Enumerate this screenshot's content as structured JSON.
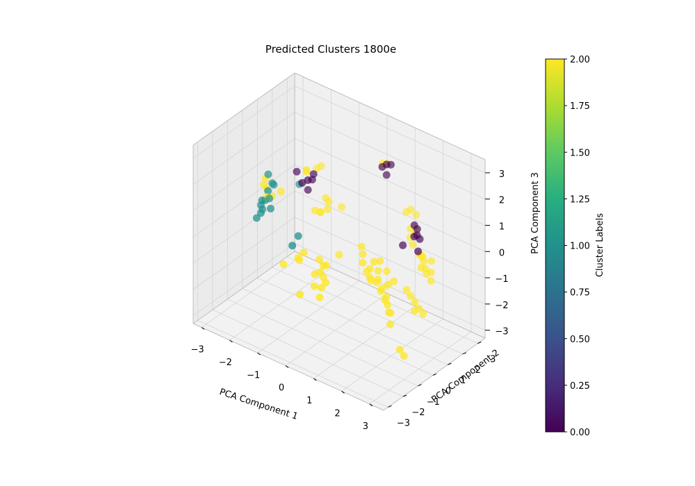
{
  "chart_data": {
    "type": "scatter",
    "title": "Predicted Clusters 1800e",
    "xlabel": "PCA Component 1",
    "ylabel": "PCA Component 2",
    "zlabel": "PCA Component 3",
    "xlim": [
      -3.3,
      3.5
    ],
    "ylim": [
      -3.3,
      3.5
    ],
    "zlim": [
      -3.3,
      3.5
    ],
    "xticks": [
      "−3",
      "−2",
      "−1",
      "0",
      "1",
      "2",
      "3"
    ],
    "yticks": [
      "−3",
      "−2",
      "−1",
      "0",
      "1",
      "2",
      "3"
    ],
    "zticks": [
      "−3",
      "−2",
      "−1",
      "0",
      "1",
      "2",
      "3"
    ],
    "colorbar": {
      "label": "Cluster Labels",
      "range": [
        0,
        2
      ],
      "colormap": "viridis",
      "ticks": [
        "0.00",
        "0.25",
        "0.50",
        "0.75",
        "1.00",
        "1.25",
        "1.50",
        "1.75",
        "2.00"
      ]
    },
    "series": [
      {
        "label": 0,
        "color": "#440154",
        "points": [
          [
            1.1,
            1.4,
            3.0
          ],
          [
            1.2,
            1.5,
            3.0
          ],
          [
            1.0,
            1.3,
            2.9
          ],
          [
            1.1,
            1.4,
            2.6
          ],
          [
            -1.4,
            1.2,
            1.5
          ],
          [
            -1.5,
            1.0,
            1.3
          ],
          [
            -1.7,
            1.0,
            1.1
          ],
          [
            -2.0,
            1.2,
            1.3
          ],
          [
            -1.6,
            1.2,
            0.8
          ],
          [
            -1.5,
            1.3,
            1.2
          ],
          [
            2.2,
            1.2,
            1.3
          ],
          [
            2.4,
            1.0,
            1.1
          ],
          [
            2.5,
            1.0,
            1.0
          ],
          [
            2.3,
            1.0,
            1.0
          ],
          [
            2.0,
            0.8,
            0.6
          ],
          [
            2.6,
            0.7,
            0.7
          ],
          [
            2.3,
            1.2,
            1.2
          ]
        ]
      },
      {
        "label": 1,
        "color": "#21918c",
        "points": [
          [
            -2.7,
            0.6,
            1.1
          ],
          [
            -2.5,
            0.5,
            0.9
          ],
          [
            -2.5,
            0.6,
            0.8
          ],
          [
            -2.6,
            0.4,
            0.6
          ],
          [
            -2.5,
            0.3,
            0.4
          ],
          [
            -2.7,
            0.4,
            0.2
          ],
          [
            -2.8,
            0.3,
            0.0
          ],
          [
            -2.8,
            0.4,
            -0.2
          ],
          [
            -2.8,
            0.3,
            -0.3
          ],
          [
            -2.9,
            0.2,
            -0.5
          ],
          [
            -2.6,
            0.0,
            0.4
          ],
          [
            -1.8,
            1.0,
            1.0
          ],
          [
            -2.4,
            0.2,
            0.1
          ],
          [
            -1.2,
            -0.2,
            -0.2
          ],
          [
            -1.2,
            -0.6,
            -0.4
          ]
        ]
      },
      {
        "label": 2,
        "color": "#fde725",
        "points": [
          [
            1.0,
            1.6,
            2.9
          ],
          [
            0.9,
            1.5,
            2.9
          ],
          [
            -1.4,
            1.7,
            1.6
          ],
          [
            -1.5,
            1.6,
            1.5
          ],
          [
            -1.7,
            1.3,
            1.4
          ],
          [
            -1.6,
            1.1,
            1.6
          ],
          [
            -2.8,
            0.6,
            0.9
          ],
          [
            -2.8,
            0.5,
            0.7
          ],
          [
            -2.7,
            0.5,
            0.6
          ],
          [
            -2.6,
            0.3,
            0.4
          ],
          [
            -2.3,
            0.7,
            0.6
          ],
          [
            -2.5,
            0.5,
            0.4
          ],
          [
            -0.8,
            0.9,
            1.0
          ],
          [
            -0.7,
            0.9,
            0.9
          ],
          [
            -0.9,
            0.7,
            0.5
          ],
          [
            -0.9,
            1.2,
            0.4
          ],
          [
            -0.5,
            1.4,
            0.6
          ],
          [
            -1.3,
            1.1,
            0.2
          ],
          [
            -1.2,
            1.3,
            0.1
          ],
          [
            1.7,
            1.6,
            1.4
          ],
          [
            1.8,
            1.7,
            1.5
          ],
          [
            2.0,
            1.7,
            1.4
          ],
          [
            2.1,
            1.4,
            1.0
          ],
          [
            1.9,
            1.5,
            0.9
          ],
          [
            2.0,
            1.3,
            0.7
          ],
          [
            2.2,
            1.1,
            0.6
          ],
          [
            2.5,
            1.0,
            0.4
          ],
          [
            2.7,
            0.9,
            0.3
          ],
          [
            2.8,
            0.8,
            0.1
          ],
          [
            2.9,
            0.7,
            0.0
          ],
          [
            2.6,
            0.9,
            0.0
          ],
          [
            2.4,
            1.3,
            0.2
          ],
          [
            2.7,
            1.4,
            0.1
          ],
          [
            2.8,
            1.2,
            -0.2
          ],
          [
            2.9,
            1.0,
            -0.4
          ],
          [
            2.7,
            0.8,
            0.5
          ],
          [
            0.9,
            0.1,
            0.3
          ],
          [
            1.0,
            0.0,
            0.1
          ],
          [
            1.1,
            -0.2,
            -0.1
          ],
          [
            1.3,
            -0.3,
            -0.3
          ],
          [
            1.5,
            -0.4,
            -0.5
          ],
          [
            1.6,
            -0.2,
            -0.6
          ],
          [
            1.8,
            -0.3,
            -0.8
          ],
          [
            2.0,
            -0.4,
            -1.0
          ],
          [
            1.4,
            0.0,
            0.0
          ],
          [
            1.6,
            -0.1,
            -0.2
          ],
          [
            1.7,
            -0.3,
            -0.4
          ],
          [
            1.9,
            -0.4,
            -0.6
          ],
          [
            2.1,
            -0.5,
            -0.8
          ],
          [
            2.2,
            -0.6,
            -1.0
          ],
          [
            2.3,
            -0.7,
            -1.2
          ],
          [
            2.0,
            -0.2,
            -0.5
          ],
          [
            2.1,
            0.0,
            -0.4
          ],
          [
            1.8,
            0.1,
            -0.2
          ],
          [
            1.5,
            0.2,
            0.0
          ],
          [
            1.2,
            0.1,
            -0.4
          ],
          [
            1.3,
            -0.1,
            -0.6
          ],
          [
            2.2,
            -0.4,
            -1.4
          ],
          [
            2.3,
            -0.6,
            -1.7
          ],
          [
            2.8,
            -0.9,
            -2.3
          ],
          [
            3.0,
            -1.0,
            -2.4
          ],
          [
            -0.5,
            -0.1,
            -0.8
          ],
          [
            -0.3,
            -0.2,
            -0.9
          ],
          [
            -0.1,
            -0.4,
            -0.7
          ],
          [
            0.1,
            0.1,
            -0.4
          ],
          [
            -0.2,
            -0.4,
            -1.2
          ],
          [
            -0.4,
            -0.6,
            -1.1
          ],
          [
            -0.1,
            -0.8,
            -0.8
          ],
          [
            0.1,
            -0.8,
            -1.1
          ],
          [
            -1.1,
            -0.4,
            -0.9
          ],
          [
            -1.0,
            -0.5,
            -0.9
          ],
          [
            -0.2,
            -1.0,
            -1.3
          ],
          [
            0.0,
            -0.9,
            -1.3
          ],
          [
            0.1,
            -1.2,
            -1.5
          ],
          [
            -0.5,
            -1.4,
            -1.6
          ],
          [
            -1.3,
            -1.0,
            -1.0
          ],
          [
            -0.9,
            -0.4,
            -0.6
          ],
          [
            2.4,
            0.3,
            -0.7
          ],
          [
            2.6,
            0.2,
            -0.8
          ],
          [
            2.8,
            0.1,
            -0.9
          ],
          [
            3.0,
            0.0,
            -1.0
          ],
          [
            3.1,
            0.1,
            -1.2
          ],
          [
            2.9,
            -0.1,
            -1.1
          ]
        ]
      }
    ]
  }
}
